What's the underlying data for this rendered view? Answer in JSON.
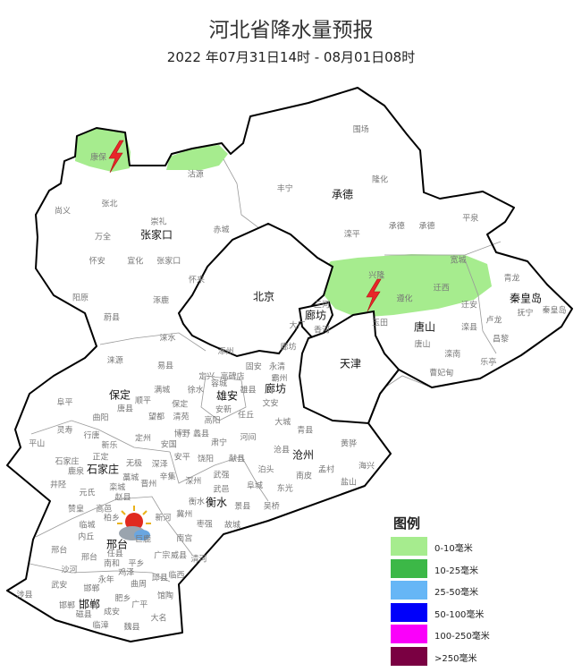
{
  "header": {
    "title": "河北省降水量预报",
    "subtitle": "2022 年07月31日14时 - 08月01日08时"
  },
  "map": {
    "region_colors": {
      "border": "#000000",
      "county_border": "#888888",
      "background": "#ffffff"
    },
    "cities": [
      "张家口",
      "承德",
      "北京",
      "廊坊",
      "唐山",
      "秦皇岛",
      "天津",
      "保定",
      "雄安",
      "廊坊",
      "沧州",
      "石家庄",
      "衡水",
      "邢台",
      "邯郸"
    ],
    "counties": [
      "围场",
      "康保",
      "沽源",
      "丰宁",
      "隆化",
      "尚义",
      "张北",
      "崇礼",
      "万全",
      "赤城",
      "滦平",
      "承德",
      "承德",
      "平泉",
      "怀安",
      "宣化",
      "张家口",
      "宽城",
      "兴隆",
      "迁西",
      "遵化",
      "怀来",
      "阳原",
      "涿鹿",
      "三河",
      "蔚县",
      "大厂",
      "香河",
      "玉田",
      "唐山",
      "青龙",
      "抚宁",
      "秦皇岛",
      "迁安",
      "卢龙",
      "滦县",
      "昌黎",
      "涞水",
      "涿州",
      "廊坊",
      "滦南",
      "乐亭",
      "涞源",
      "易县",
      "固安",
      "永清",
      "曹妃甸",
      "定兴",
      "高碑店",
      "霸州",
      "满城",
      "徐水",
      "容城",
      "雄县",
      "阜平",
      "顺平",
      "保定",
      "唐县",
      "安新",
      "文安",
      "曲阳",
      "望都",
      "清苑",
      "高阳",
      "任丘",
      "大城",
      "青县",
      "灵寿",
      "行唐",
      "定州",
      "博野",
      "蠡县",
      "肃宁",
      "河间",
      "黄骅",
      "平山",
      "新乐",
      "安国",
      "沧县",
      "安平",
      "饶阳",
      "献县",
      "石家庄",
      "正定",
      "无极",
      "深泽",
      "鹿泉",
      "藁城",
      "晋州",
      "辛集",
      "武强",
      "泊头",
      "南皮",
      "孟村",
      "海兴",
      "井陉",
      "栾城",
      "深州",
      "武邑",
      "阜城",
      "东光",
      "盐山",
      "元氏",
      "赵县",
      "衡水",
      "景县",
      "吴桥",
      "赞皇",
      "高邑",
      "柏乡",
      "新河",
      "冀州",
      "枣强",
      "故城",
      "临城",
      "内丘",
      "巨鹿",
      "南宫",
      "邢台",
      "邢台",
      "任县",
      "广宗",
      "威县",
      "清河",
      "南和",
      "平乡",
      "沙河",
      "鸡泽",
      "永年",
      "邱县",
      "临西",
      "武安",
      "邯郸",
      "曲周",
      "涉县",
      "馆陶",
      "邯郸",
      "肥乡",
      "广平",
      "成安",
      "磁县",
      "大名",
      "临漳",
      "魏县"
    ],
    "rain_areas": [
      {
        "level": "0-10毫米",
        "area": "康保"
      },
      {
        "level": "0-10毫米",
        "area": "沽源"
      },
      {
        "level": "0-10毫米",
        "area": "兴隆-遵化-迁西-宽城"
      }
    ],
    "icons": [
      "thunderstorm-icon",
      "thunderstorm-icon",
      "partly-cloudy-icon"
    ]
  },
  "legend": {
    "title": "图例",
    "items": [
      {
        "label": "0-10毫米",
        "color": "#a6ec8e"
      },
      {
        "label": "10-25毫米",
        "color": "#3cb847"
      },
      {
        "label": "25-50毫米",
        "color": "#66b6f6"
      },
      {
        "label": "50-100毫米",
        "color": "#0000fa"
      },
      {
        "label": "100-250毫米",
        "color": "#fa00fa"
      },
      {
        "label": ">250毫米",
        "color": "#7a0042"
      }
    ]
  }
}
